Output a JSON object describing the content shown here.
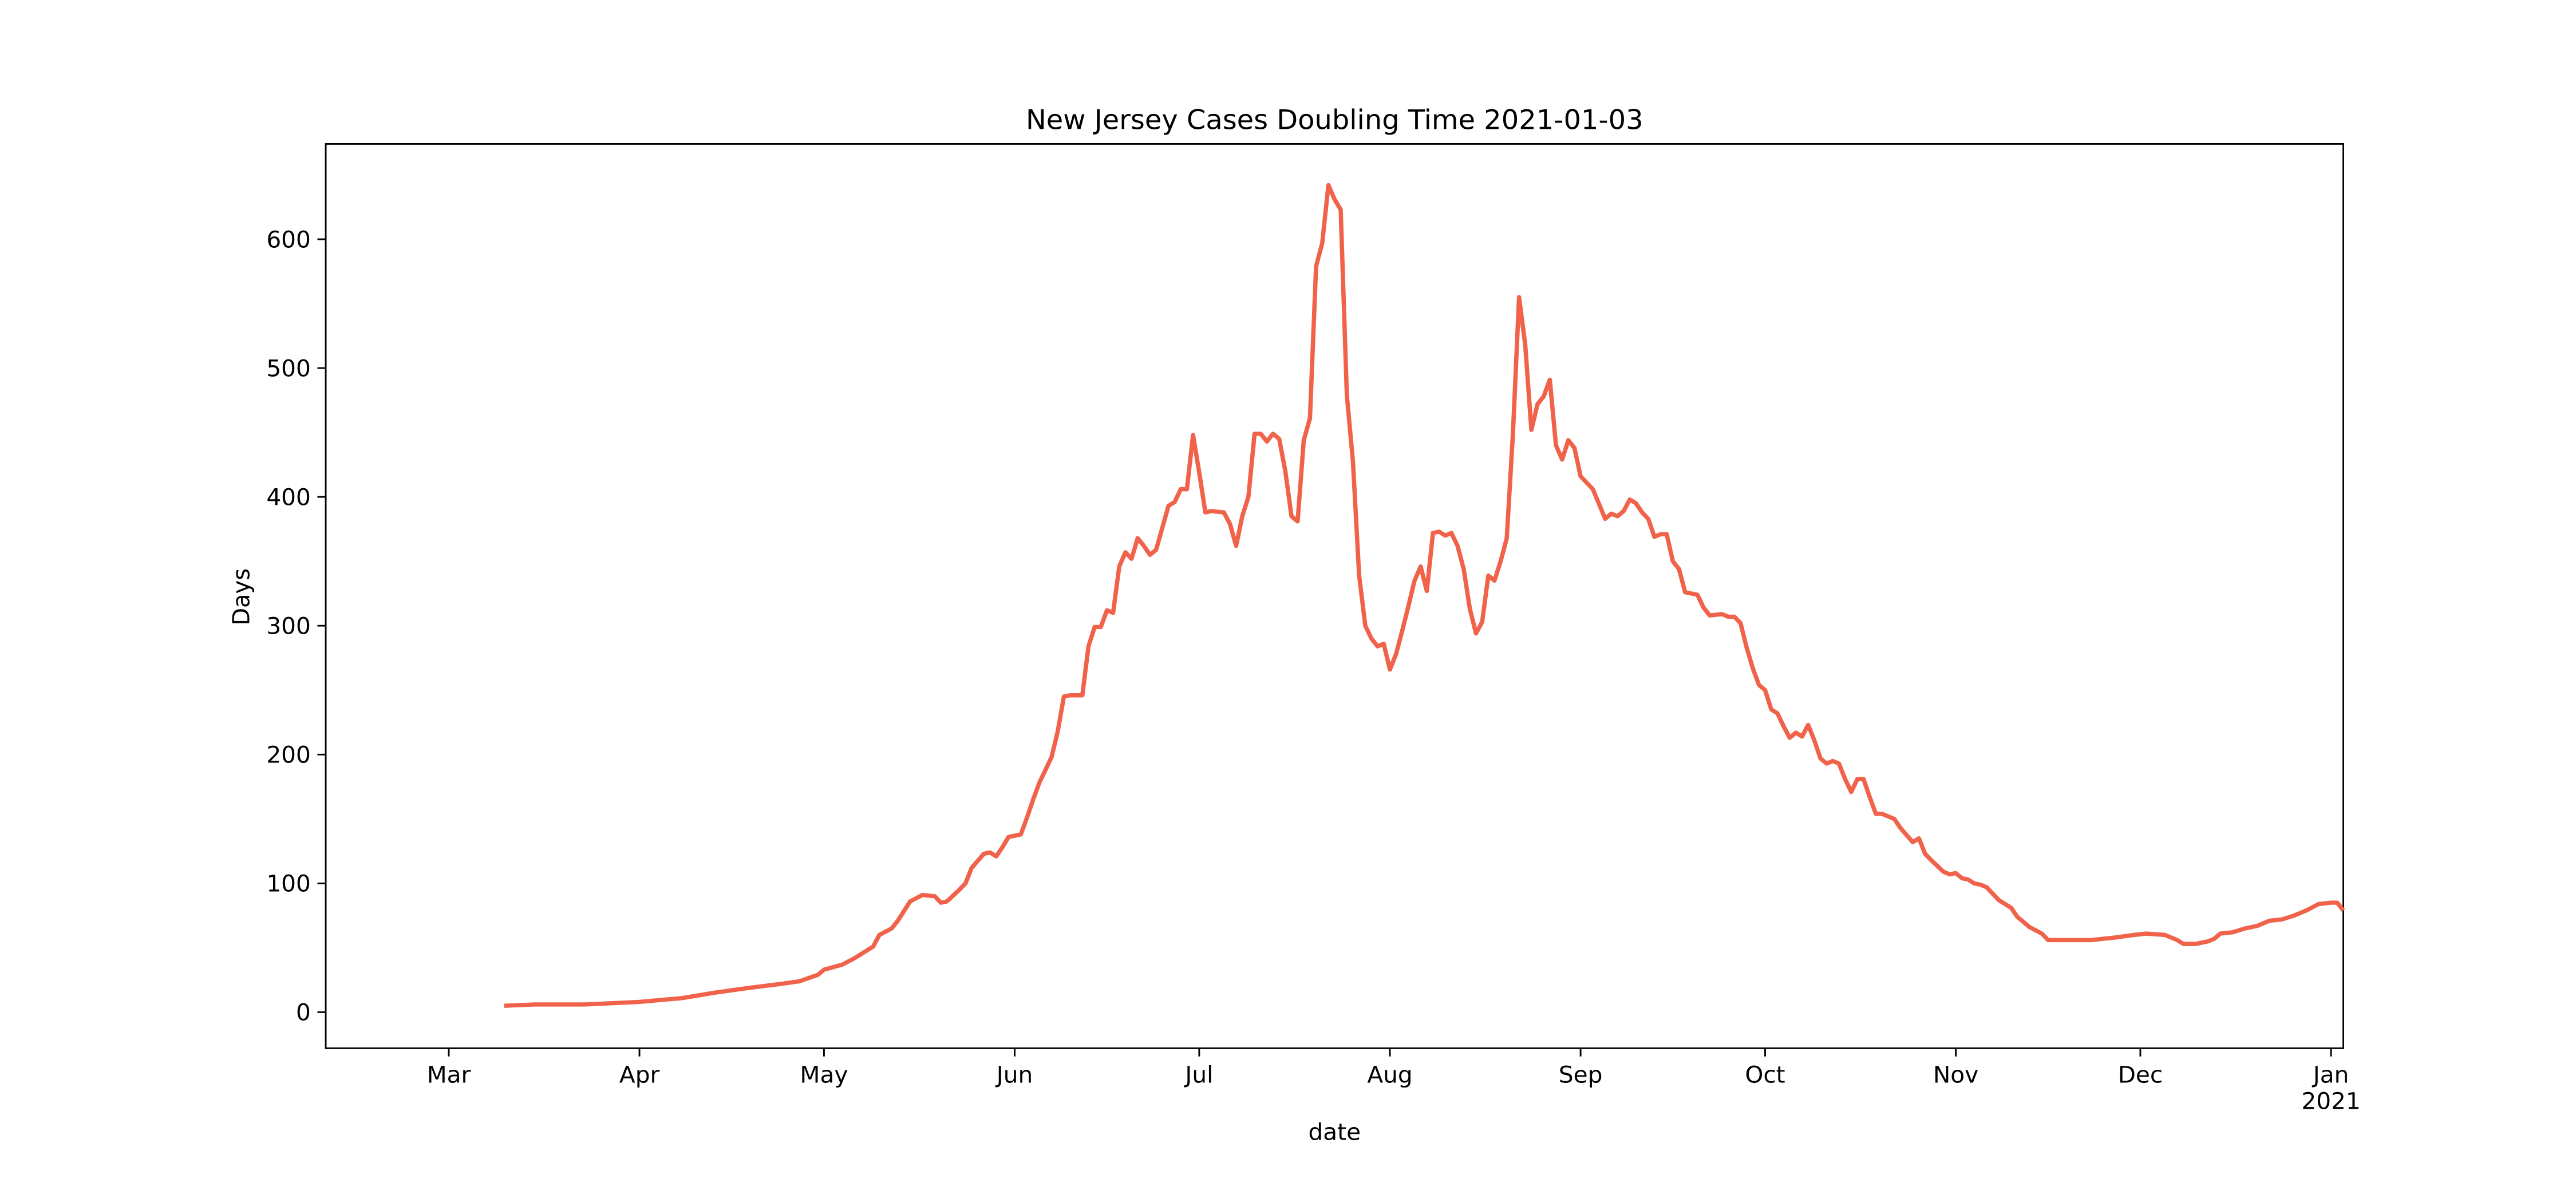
{
  "chart_data": {
    "type": "line",
    "title": "New Jersey Cases Doubling Time 2021-01-03",
    "xlabel": "date",
    "ylabel": "Days",
    "color": "#f0624a",
    "xlim": [
      "2020-02-10",
      "2021-01-03"
    ],
    "xticks": [
      {
        "value": "2020-03-01",
        "label": "Mar"
      },
      {
        "value": "2020-04-01",
        "label": "Apr"
      },
      {
        "value": "2020-05-01",
        "label": "May"
      },
      {
        "value": "2020-06-01",
        "label": "Jun"
      },
      {
        "value": "2020-07-01",
        "label": "Jul"
      },
      {
        "value": "2020-08-01",
        "label": "Aug"
      },
      {
        "value": "2020-09-01",
        "label": "Sep"
      },
      {
        "value": "2020-10-01",
        "label": "Oct"
      },
      {
        "value": "2020-11-01",
        "label": "Nov"
      },
      {
        "value": "2020-12-01",
        "label": "Dec"
      },
      {
        "value": "2021-01-01",
        "label": "Jan\n2021"
      }
    ],
    "ylim": [
      -28,
      674
    ],
    "yticks": [
      0,
      100,
      200,
      300,
      400,
      500,
      600
    ],
    "x": [
      "2020-03-10",
      "2020-03-15",
      "2020-03-23",
      "2020-04-01",
      "2020-04-08",
      "2020-04-13",
      "2020-04-19",
      "2020-04-24",
      "2020-04-27",
      "2020-04-30",
      "2020-05-01",
      "2020-05-04",
      "2020-05-06",
      "2020-05-09",
      "2020-05-10",
      "2020-05-12",
      "2020-05-13",
      "2020-05-15",
      "2020-05-17",
      "2020-05-19",
      "2020-05-20",
      "2020-05-21",
      "2020-05-23",
      "2020-05-24",
      "2020-05-25",
      "2020-05-27",
      "2020-05-28",
      "2020-05-29",
      "2020-05-30",
      "2020-05-31",
      "2020-06-02",
      "2020-06-03",
      "2020-06-04",
      "2020-06-05",
      "2020-06-07",
      "2020-06-08",
      "2020-06-09",
      "2020-06-10",
      "2020-06-12",
      "2020-06-13",
      "2020-06-14",
      "2020-06-15",
      "2020-06-16",
      "2020-06-17",
      "2020-06-18",
      "2020-06-19",
      "2020-06-20",
      "2020-06-21",
      "2020-06-22",
      "2020-06-23",
      "2020-06-24",
      "2020-06-26",
      "2020-06-27",
      "2020-06-28",
      "2020-06-29",
      "2020-06-30",
      "2020-07-01",
      "2020-07-02",
      "2020-07-03",
      "2020-07-05",
      "2020-07-06",
      "2020-07-07",
      "2020-07-08",
      "2020-07-09",
      "2020-07-10",
      "2020-07-11",
      "2020-07-12",
      "2020-07-13",
      "2020-07-14",
      "2020-07-15",
      "2020-07-16",
      "2020-07-17",
      "2020-07-18",
      "2020-07-19",
      "2020-07-20",
      "2020-07-21",
      "2020-07-22",
      "2020-07-23",
      "2020-07-24",
      "2020-07-25",
      "2020-07-26",
      "2020-07-27",
      "2020-07-28",
      "2020-07-29",
      "2020-07-30",
      "2020-07-31",
      "2020-08-01",
      "2020-08-02",
      "2020-08-03",
      "2020-08-04",
      "2020-08-05",
      "2020-08-06",
      "2020-08-07",
      "2020-08-08",
      "2020-08-09",
      "2020-08-10",
      "2020-08-11",
      "2020-08-12",
      "2020-08-13",
      "2020-08-14",
      "2020-08-15",
      "2020-08-16",
      "2020-08-17",
      "2020-08-18",
      "2020-08-19",
      "2020-08-20",
      "2020-08-21",
      "2020-08-22",
      "2020-08-23",
      "2020-08-24",
      "2020-08-25",
      "2020-08-26",
      "2020-08-27",
      "2020-08-28",
      "2020-08-29",
      "2020-08-30",
      "2020-08-31",
      "2020-09-01",
      "2020-09-02",
      "2020-09-03",
      "2020-09-05",
      "2020-09-06",
      "2020-09-07",
      "2020-09-08",
      "2020-09-09",
      "2020-09-10",
      "2020-09-11",
      "2020-09-12",
      "2020-09-13",
      "2020-09-14",
      "2020-09-15",
      "2020-09-16",
      "2020-09-17",
      "2020-09-18",
      "2020-09-19",
      "2020-09-20",
      "2020-09-21",
      "2020-09-22",
      "2020-09-24",
      "2020-09-25",
      "2020-09-26",
      "2020-09-27",
      "2020-09-28",
      "2020-09-29",
      "2020-09-30",
      "2020-10-01",
      "2020-10-02",
      "2020-10-03",
      "2020-10-04",
      "2020-10-05",
      "2020-10-06",
      "2020-10-07",
      "2020-10-08",
      "2020-10-09",
      "2020-10-10",
      "2020-10-11",
      "2020-10-12",
      "2020-10-13",
      "2020-10-14",
      "2020-10-15",
      "2020-10-16",
      "2020-10-17",
      "2020-10-18",
      "2020-10-19",
      "2020-10-20",
      "2020-10-22",
      "2020-10-23",
      "2020-10-25",
      "2020-10-26",
      "2020-10-27",
      "2020-10-28",
      "2020-10-30",
      "2020-10-31",
      "2020-11-01",
      "2020-11-02",
      "2020-11-03",
      "2020-11-04",
      "2020-11-05",
      "2020-11-06",
      "2020-11-08",
      "2020-11-09",
      "2020-11-10",
      "2020-11-11",
      "2020-11-13",
      "2020-11-15",
      "2020-11-16",
      "2020-11-18",
      "2020-11-20",
      "2020-11-23",
      "2020-11-25",
      "2020-11-27",
      "2020-11-30",
      "2020-12-02",
      "2020-12-05",
      "2020-12-07",
      "2020-12-08",
      "2020-12-10",
      "2020-12-12",
      "2020-12-13",
      "2020-12-14",
      "2020-12-16",
      "2020-12-18",
      "2020-12-20",
      "2020-12-22",
      "2020-12-24",
      "2020-12-26",
      "2020-12-27",
      "2020-12-28",
      "2020-12-30",
      "2021-01-01",
      "2021-01-02",
      "2021-01-03"
    ],
    "values": [
      5,
      6,
      6,
      8,
      11,
      15,
      19,
      22,
      24,
      29,
      33,
      37,
      42,
      51,
      60,
      65,
      71,
      86,
      91,
      90,
      85,
      86,
      95,
      100,
      112,
      123,
      124,
      121,
      128,
      136,
      138,
      151,
      165,
      178,
      198,
      218,
      245,
      246,
      246,
      284,
      299,
      299,
      312,
      310,
      346,
      357,
      352,
      368,
      362,
      355,
      359,
      393,
      396,
      406,
      406,
      448,
      419,
      388,
      389,
      388,
      379,
      362,
      385,
      400,
      449,
      449,
      443,
      449,
      445,
      420,
      385,
      381,
      444,
      461,
      579,
      597,
      642,
      631,
      623,
      479,
      427,
      339,
      300,
      290,
      284,
      286,
      266,
      278,
      296,
      315,
      335,
      346,
      327,
      372,
      373,
      370,
      372,
      362,
      344,
      313,
      294,
      303,
      339,
      335,
      350,
      368,
      449,
      555,
      518,
      452,
      472,
      478,
      491,
      440,
      429,
      444,
      438,
      416,
      411,
      406,
      383,
      387,
      385,
      389,
      398,
      395,
      388,
      383,
      369,
      371,
      371,
      350,
      344,
      326,
      325,
      324,
      314,
      308,
      309,
      307,
      307,
      302,
      283,
      267,
      254,
      250,
      235,
      232,
      222,
      213,
      217,
      214,
      223,
      211,
      197,
      193,
      195,
      193,
      181,
      171,
      181,
      181,
      167,
      154,
      154,
      150,
      143,
      132,
      135,
      123,
      118,
      109,
      107,
      108,
      104,
      103,
      100,
      99,
      97,
      87,
      84,
      81,
      74,
      66,
      61,
      56,
      56,
      56,
      56,
      57,
      58,
      60,
      61,
      60,
      56,
      53,
      53,
      55,
      57,
      61,
      62,
      65,
      67,
      71,
      72,
      75,
      77,
      79,
      84,
      85,
      85,
      79
    ]
  }
}
